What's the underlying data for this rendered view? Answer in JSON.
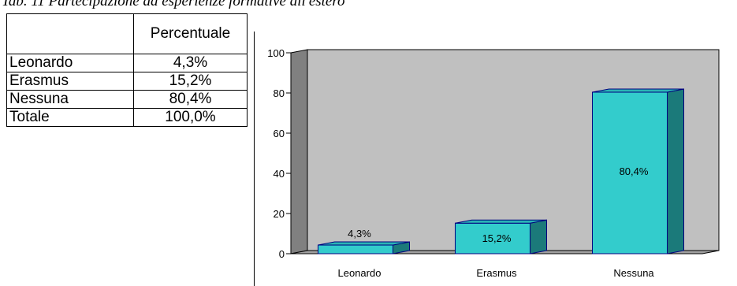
{
  "caption": "Tab. 11 Partecipazione ad esperienze formative all'estero",
  "table": {
    "header": [
      "",
      "Percentuale"
    ],
    "rows": [
      [
        "Leonardo",
        "4,3%"
      ],
      [
        "Erasmus",
        "15,2%"
      ],
      [
        "Nessuna",
        "80,4%"
      ],
      [
        "Totale",
        "100,0%"
      ]
    ]
  },
  "chart_data": {
    "type": "bar",
    "categories": [
      "Leonardo",
      "Erasmus",
      "Nessuna"
    ],
    "values": [
      4.3,
      15.2,
      80.4
    ],
    "data_labels": [
      "4,3%",
      "15,2%",
      "80,4%"
    ],
    "y_ticks": [
      "0",
      "20",
      "40",
      "60",
      "80",
      "100"
    ],
    "ylim": [
      0,
      100
    ],
    "title": "",
    "xlabel": "",
    "ylabel": "",
    "grid": false,
    "legend": "none",
    "colors": {
      "bar_front": "#33CCCC",
      "bar_side": "#1B7A7A",
      "bar_top": "#2AB5B5",
      "bar_edge": "#000080",
      "plot_back": "#C0C0C0",
      "plot_left_wall": "#808080",
      "floor": "#A0A0A0"
    }
  }
}
